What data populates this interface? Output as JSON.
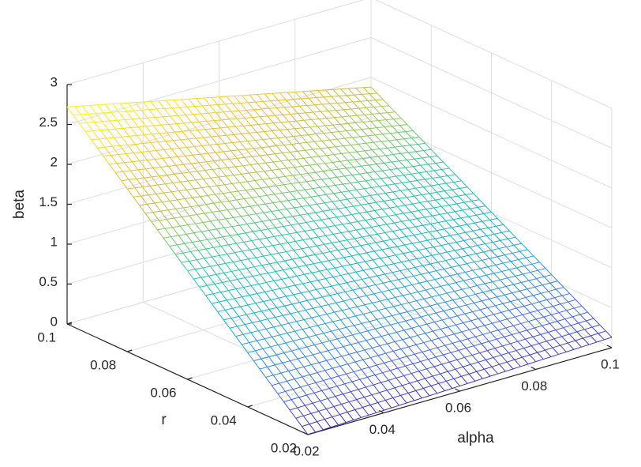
{
  "chart_data": {
    "type": "surface",
    "title": "",
    "xlabel": "alpha",
    "ylabel": "r",
    "zlabel": "beta",
    "x_ticks": [
      "0.02",
      "0.04",
      "0.06",
      "0.08",
      "0.1"
    ],
    "y_ticks": [
      "0.02",
      "0.04",
      "0.06",
      "0.08",
      "0.1"
    ],
    "z_ticks": [
      "0",
      "0.5",
      "1",
      "1.5",
      "2",
      "2.5",
      "3"
    ],
    "xlim": [
      0.02,
      0.1
    ],
    "ylim": [
      0.02,
      0.1
    ],
    "zlim": [
      0,
      3
    ],
    "grid": true,
    "colormap": "parula",
    "mesh_size": 41,
    "corner_values": [
      {
        "alpha": 0.02,
        "r": 0.02,
        "beta": 0.0
      },
      {
        "alpha": 0.1,
        "r": 0.02,
        "beta": 0.13
      },
      {
        "alpha": 0.02,
        "r": 0.1,
        "beta": 2.72
      },
      {
        "alpha": 0.1,
        "r": 0.1,
        "beta": 1.88
      }
    ],
    "colors": {
      "axis": "#262626",
      "grid": "#dedede",
      "colormap_stops": [
        "#3e26a8",
        "#4669f1",
        "#2d9ddd",
        "#14b9c7",
        "#2fc699",
        "#96c859",
        "#e9b936",
        "#fadb25",
        "#f9fb15"
      ]
    }
  }
}
